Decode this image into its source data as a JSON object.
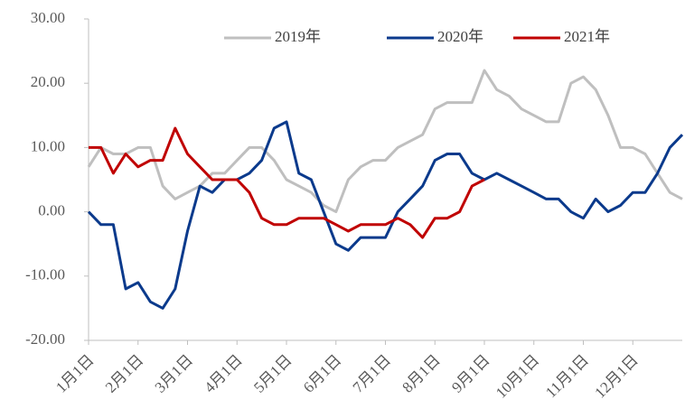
{
  "chart_data": {
    "type": "line",
    "categories": [
      "1月1日",
      null,
      null,
      null,
      "2月1日",
      null,
      null,
      null,
      "3月1日",
      null,
      null,
      null,
      "4月1日",
      null,
      null,
      null,
      "5月1日",
      null,
      null,
      null,
      "6月1日",
      null,
      null,
      null,
      "7月1日",
      null,
      null,
      null,
      "8月1日",
      null,
      null,
      null,
      "9月1日",
      null,
      null,
      null,
      "10月1日",
      null,
      null,
      null,
      "11月1日",
      null,
      null,
      null,
      "12月1日",
      null,
      null,
      null,
      null
    ],
    "series": [
      {
        "name": "2019年",
        "color": "#bfbfbf",
        "values": [
          7,
          10,
          9,
          9,
          10,
          10,
          4,
          2,
          3,
          4,
          6,
          6,
          8,
          10,
          10,
          8,
          5,
          4,
          3,
          1,
          0,
          5,
          7,
          8,
          8,
          10,
          11,
          12,
          16,
          17,
          17,
          17,
          22,
          19,
          18,
          16,
          15,
          14,
          14,
          20,
          21,
          19,
          15,
          10,
          10,
          9,
          6,
          3,
          2
        ]
      },
      {
        "name": "2020年",
        "color": "#0b3a8c",
        "values": [
          0,
          -2,
          -2,
          -12,
          -11,
          -14,
          -15,
          -12,
          -3,
          4,
          3,
          5,
          5,
          6,
          8,
          13,
          14,
          6,
          5,
          0,
          -5,
          -6,
          -4,
          -4,
          -4,
          0,
          2,
          4,
          8,
          9,
          9,
          6,
          5,
          6,
          5,
          4,
          3,
          2,
          2,
          0,
          -1,
          2,
          0,
          1,
          3,
          3,
          6,
          10,
          12
        ]
      },
      {
        "name": "2021年",
        "color": "#c00000",
        "values": [
          10,
          10,
          6,
          9,
          7,
          8,
          8,
          13,
          9,
          7,
          5,
          5,
          5,
          3,
          -1,
          -2,
          -2,
          -1,
          -1,
          -1,
          -2,
          -3,
          -2,
          -2,
          -2,
          -1,
          -2,
          -4,
          -1,
          -1,
          0,
          4,
          5,
          null,
          null,
          null,
          null,
          null,
          null,
          null,
          null,
          null,
          null,
          null,
          null,
          null,
          null,
          null,
          null
        ]
      }
    ],
    "ylim": [
      -20,
      30
    ],
    "yticks": [
      {
        "value": -20,
        "label": "-20.00"
      },
      {
        "value": -10,
        "label": "-10.00"
      },
      {
        "value": 0,
        "label": "0.00"
      },
      {
        "value": 10,
        "label": "10.00"
      },
      {
        "value": 20,
        "label": "20.00"
      },
      {
        "value": 30,
        "label": "30.00"
      }
    ]
  }
}
